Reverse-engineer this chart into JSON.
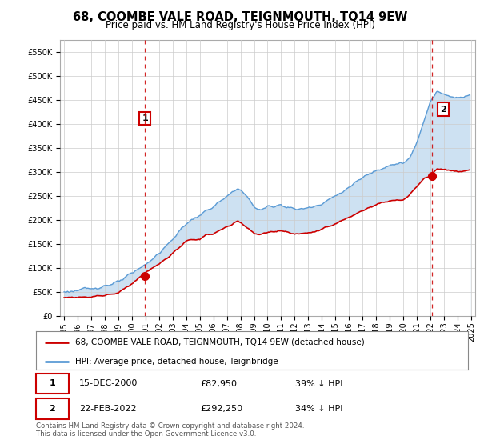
{
  "title": "68, COOMBE VALE ROAD, TEIGNMOUTH, TQ14 9EW",
  "subtitle": "Price paid vs. HM Land Registry's House Price Index (HPI)",
  "ylim": [
    0,
    575000
  ],
  "yticks": [
    0,
    50000,
    100000,
    150000,
    200000,
    250000,
    300000,
    350000,
    400000,
    450000,
    500000,
    550000
  ],
  "xlim_start": 1994.7,
  "xlim_end": 2025.3,
  "hpi_color": "#5b9bd5",
  "hpi_fill_color": "#c5dcf0",
  "price_color": "#cc0000",
  "sale1_date": 2000.96,
  "sale1_price": 82950,
  "sale1_label": "1",
  "sale2_date": 2022.13,
  "sale2_price": 292250,
  "sale2_label": "2",
  "legend_line1": "68, COOMBE VALE ROAD, TEIGNMOUTH, TQ14 9EW (detached house)",
  "legend_line2": "HPI: Average price, detached house, Teignbridge",
  "table_row1": [
    "1",
    "15-DEC-2000",
    "£82,950",
    "39% ↓ HPI"
  ],
  "table_row2": [
    "2",
    "22-FEB-2022",
    "£292,250",
    "34% ↓ HPI"
  ],
  "footnote": "Contains HM Land Registry data © Crown copyright and database right 2024.\nThis data is licensed under the Open Government Licence v3.0.",
  "background_color": "#ffffff",
  "grid_color": "#cccccc",
  "title_fontsize": 10.5,
  "subtitle_fontsize": 8.5,
  "tick_label_fontsize": 7.0,
  "hpi_anchors_x": [
    1995.0,
    1996.0,
    1997.0,
    1998.0,
    1999.0,
    2000.0,
    2001.0,
    2002.0,
    2003.0,
    2004.0,
    2005.0,
    2006.0,
    2007.0,
    2007.8,
    2008.5,
    2009.0,
    2009.5,
    2010.0,
    2011.0,
    2012.0,
    2013.0,
    2014.0,
    2015.0,
    2016.0,
    2017.0,
    2018.0,
    2019.0,
    2020.0,
    2020.5,
    2021.0,
    2021.5,
    2022.0,
    2022.5,
    2023.0,
    2024.0,
    2024.9
  ],
  "hpi_anchors_y": [
    50000,
    53000,
    57000,
    63000,
    70000,
    88000,
    108000,
    130000,
    160000,
    193000,
    210000,
    228000,
    248000,
    268000,
    248000,
    228000,
    220000,
    228000,
    232000,
    222000,
    225000,
    235000,
    250000,
    268000,
    288000,
    305000,
    315000,
    318000,
    330000,
    360000,
    405000,
    450000,
    468000,
    462000,
    455000,
    462000
  ],
  "price_anchors_x": [
    1995.0,
    1996.0,
    1997.0,
    1998.0,
    1999.0,
    2000.0,
    2001.0,
    2002.0,
    2003.0,
    2004.0,
    2005.0,
    2006.0,
    2007.0,
    2007.8,
    2008.5,
    2009.0,
    2009.5,
    2010.0,
    2011.0,
    2012.0,
    2013.0,
    2014.0,
    2015.0,
    2016.0,
    2017.0,
    2018.0,
    2019.0,
    2020.0,
    2020.5,
    2021.0,
    2021.5,
    2022.0,
    2022.5,
    2023.0,
    2024.0,
    2024.9
  ],
  "price_anchors_y": [
    38000,
    39000,
    40000,
    43000,
    48000,
    68000,
    90000,
    108000,
    130000,
    155000,
    162000,
    172000,
    185000,
    198000,
    185000,
    172000,
    168000,
    175000,
    178000,
    170000,
    172000,
    180000,
    192000,
    205000,
    220000,
    233000,
    240000,
    243000,
    252000,
    270000,
    285000,
    292000,
    308000,
    305000,
    300000,
    305000
  ]
}
